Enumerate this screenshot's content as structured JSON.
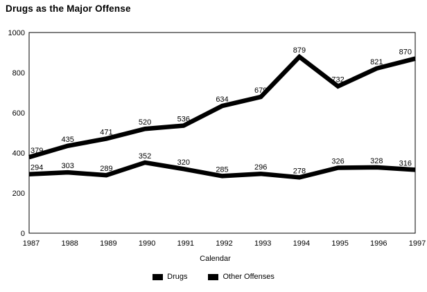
{
  "title": "Drugs as the Major Offense",
  "colors": {
    "line": "#000000",
    "text": "#000000",
    "background": "#ffffff",
    "plot_border": "#000000"
  },
  "chart_data": {
    "type": "line",
    "title": "Drugs as the Major Offense",
    "xlabel": "Calendar",
    "ylabel": "",
    "categories": [
      "1987",
      "1988",
      "1989",
      "1990",
      "1991",
      "1992",
      "1993",
      "1994",
      "1995",
      "1996",
      "1997"
    ],
    "series": [
      {
        "name": "Drugs",
        "color": "#000000",
        "values": [
          294,
          303,
          289,
          352,
          320,
          285,
          296,
          278,
          326,
          328,
          316
        ]
      },
      {
        "name": "Other Offenses",
        "color": "#000000",
        "values": [
          379,
          435,
          471,
          520,
          536,
          634,
          679,
          879,
          732,
          821,
          870
        ]
      }
    ],
    "ylim": [
      0,
      1000
    ],
    "yticks": [
      0,
      200,
      400,
      600,
      800,
      1000
    ],
    "grid": false,
    "data_labels": true,
    "legend_position": "bottom"
  },
  "legend": {
    "items": [
      {
        "label": "Drugs",
        "swatch": "#000000"
      },
      {
        "label": "Other Offenses",
        "swatch": "#000000"
      }
    ]
  }
}
